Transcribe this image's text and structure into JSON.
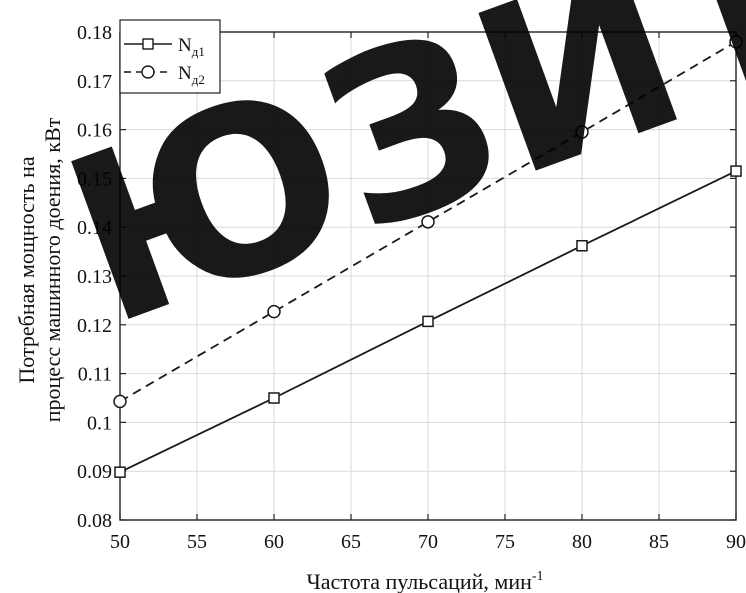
{
  "watermark": "ЮЗИТ",
  "chart_data": {
    "type": "line",
    "title": "",
    "xlabel": "Частота пульсаций, мин",
    "xlabel_sup": "-1",
    "ylabel_line1": "Потребная мощность на",
    "ylabel_line2": "процесс машинного доения, кВт",
    "x": [
      50,
      60,
      70,
      80,
      90
    ],
    "xlim": [
      50,
      90
    ],
    "ylim": [
      0.08,
      0.18
    ],
    "xticks": [
      "50",
      "55",
      "60",
      "65",
      "70",
      "75",
      "80",
      "85",
      "90"
    ],
    "yticks": [
      "0.08",
      "0.09",
      "0.1",
      "0.11",
      "0.12",
      "0.13",
      "0.14",
      "0.15",
      "0.16",
      "0.17",
      "0.18"
    ],
    "grid": true,
    "legend_position": "top-left",
    "series": [
      {
        "name": "N",
        "name_sub": "д1",
        "values": [
          0.0898,
          0.105,
          0.1207,
          0.1362,
          0.1515
        ],
        "line_style": "solid",
        "marker": "square",
        "color": "#1a1a1a"
      },
      {
        "name": "N",
        "name_sub": "д2",
        "values": [
          0.1043,
          0.1227,
          0.1411,
          0.1595,
          0.178
        ],
        "line_style": "dashed",
        "marker": "circle",
        "color": "#1a1a1a"
      }
    ]
  }
}
